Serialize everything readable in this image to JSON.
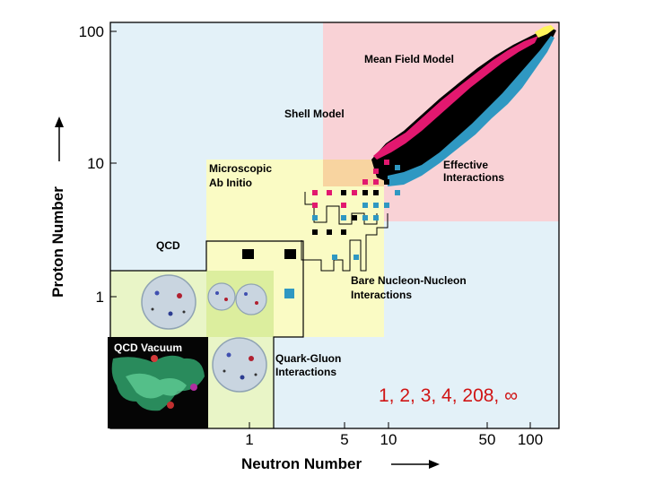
{
  "axes": {
    "x_title": "Neutron Number",
    "y_title": "Proton Number",
    "x_ticks": [
      "1",
      "5",
      "10",
      "50",
      "100"
    ],
    "y_ticks": [
      "1",
      "10",
      "100"
    ]
  },
  "regions": {
    "mean_field": "Mean Field Model",
    "shell_model": "Shell Model",
    "effective_line1": "Effective",
    "effective_line2": "Interactions",
    "microscopic_line1": "Microscopic",
    "microscopic_line2": "Ab Initio",
    "qcd": "QCD",
    "bare_line1": "Bare Nucleon-Nucleon",
    "bare_line2": "Interactions",
    "quark_line1": "Quark-Gluon",
    "quark_line2": "Interactions",
    "qcd_vacuum": "QCD Vacuum"
  },
  "magic_numbers": "1, 2, 3, 4, 208, ∞",
  "colors": {
    "light_blue": "#e3f1f8",
    "pink": "#f9d2d6",
    "yellow": "#fafbc4",
    "light_green": "#e9f5c7",
    "magenta": "#e2186f",
    "teal": "#2f98c2",
    "black": "#000000",
    "red_text": "#d01414"
  }
}
